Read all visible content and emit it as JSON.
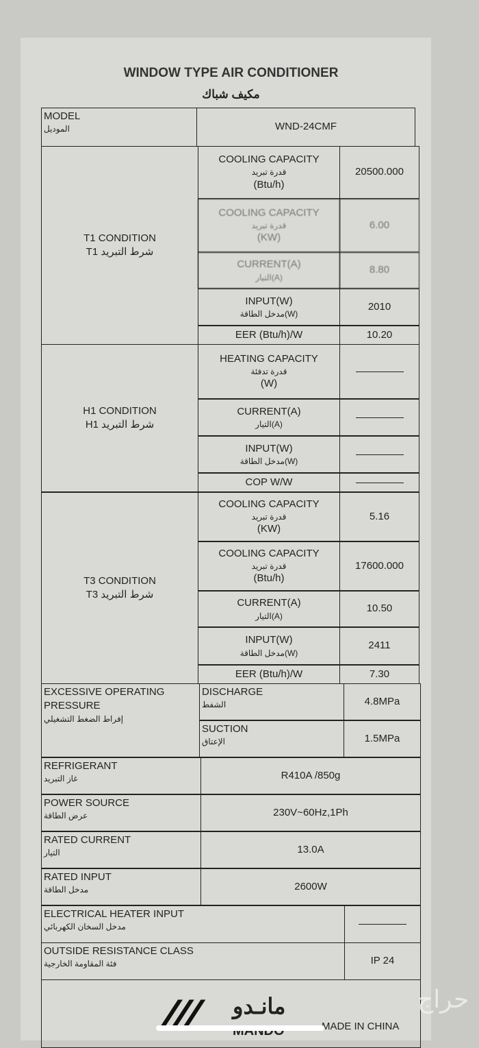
{
  "title_en": "WINDOW TYPE AIR CONDITIONER",
  "title_ar": "مكيف شباك",
  "model": {
    "label_en": "MODEL",
    "label_ar": "الموديل",
    "value": "WND-24CMF"
  },
  "t1": {
    "label_en": "T1 CONDITION",
    "label_ar": "T1 شرط التبريد",
    "rows": [
      {
        "en": "COOLING CAPACITY",
        "ar": "قدرة تبريد",
        "unit": "(Btu/h)",
        "value": "20500.000"
      },
      {
        "en": "COOLING CAPACITY",
        "ar": "قدرة تبريد",
        "unit": "(KW)",
        "value": "6.00"
      },
      {
        "en": "CURRENT(A)",
        "ar": "التيار(A)",
        "unit": "",
        "value": "8.80"
      },
      {
        "en": "INPUT(W)",
        "ar": "مدخل الطاقة(W)",
        "unit": "",
        "value": "2010"
      },
      {
        "en": "EER (Btu/h)/W",
        "ar": "",
        "unit": "",
        "value": "10.20"
      }
    ]
  },
  "h1": {
    "label_en": "H1 CONDITION",
    "label_ar": "H1 شرط التبريد",
    "rows": [
      {
        "en": "HEATING CAPACITY",
        "ar": "قدرة تدفئة",
        "unit": "(W)",
        "value": ""
      },
      {
        "en": "CURRENT(A)",
        "ar": "التيار(A)",
        "unit": "",
        "value": ""
      },
      {
        "en": "INPUT(W)",
        "ar": "مدخل الطاقة(W)",
        "unit": "",
        "value": ""
      },
      {
        "en": "COP W/W",
        "ar": "",
        "unit": "",
        "value": ""
      }
    ]
  },
  "t3": {
    "label_en": "T3 CONDITION",
    "label_ar": "T3 شرط التبريد",
    "rows": [
      {
        "en": "COOLING CAPACITY",
        "ar": "قدرة تبريد",
        "unit": "(KW)",
        "value": "5.16"
      },
      {
        "en": "COOLING CAPACITY",
        "ar": "قدرة تبريد",
        "unit": "(Btu/h)",
        "value": "17600.000"
      },
      {
        "en": "CURRENT(A)",
        "ar": "التيار(A)",
        "unit": "",
        "value": "10.50"
      },
      {
        "en": "INPUT(W)",
        "ar": "مدخل الطاقة(W)",
        "unit": "",
        "value": "2411"
      },
      {
        "en": "EER (Btu/h)/W",
        "ar": "",
        "unit": "",
        "value": "7.30"
      }
    ]
  },
  "pressure": {
    "label_en": "EXCESSIVE OPERATING PRESSURE",
    "label_ar": "إفراط الضغط التشغيلي",
    "discharge": {
      "en": "DISCHARGE",
      "ar": "الشفط",
      "value": "4.8MPa"
    },
    "suction": {
      "en": "SUCTION",
      "ar": "الإعتاق",
      "value": "1.5MPa"
    }
  },
  "specs": [
    {
      "en": "REFRIGERANT",
      "ar": "غاز التبريد",
      "value": "R410A /850g"
    },
    {
      "en": "POWER SOURCE",
      "ar": "عرض الطاقة",
      "value": "230V~60Hz,1Ph"
    },
    {
      "en": "RATED CURRENT",
      "ar": "التيار",
      "value": "13.0A"
    },
    {
      "en": "RATED INPUT",
      "ar": "مدخل الطاقة",
      "value": "2600W"
    }
  ],
  "heater": {
    "en": "ELECTRICAL HEATER INPUT",
    "ar": "مدخل السخان الكهربائي",
    "value": ""
  },
  "outside": {
    "en": "OUTSIDE RESISTANCE CLASS",
    "ar": "فئة المقاومة الخارجية",
    "value": "IP 24"
  },
  "footer": {
    "brand_ar": "مانـدو",
    "brand_en": "MANDO",
    "made_in": "MADE IN CHINA",
    "watermark": "حراج"
  }
}
